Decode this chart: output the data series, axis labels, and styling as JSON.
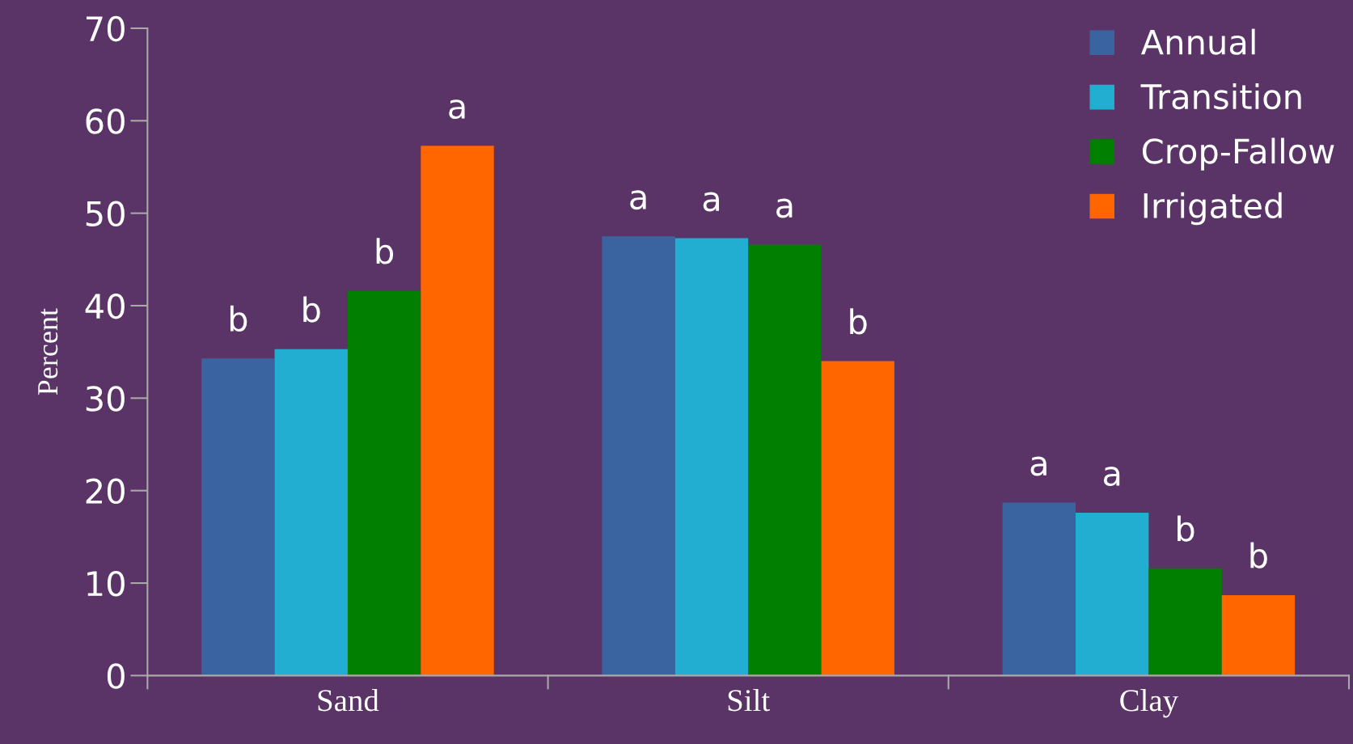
{
  "chart_data": {
    "type": "bar",
    "ylabel": "Percent",
    "categories": [
      "Sand",
      "Silt",
      "Clay"
    ],
    "series": [
      {
        "name": "Annual",
        "color": "#3a64a0",
        "values": [
          34.3,
          47.5,
          18.7
        ],
        "value_labels": [
          "b",
          "a",
          "a"
        ]
      },
      {
        "name": "Transition",
        "color": "#21aed0",
        "values": [
          35.3,
          47.3,
          17.6
        ],
        "value_labels": [
          "b",
          "a",
          "a"
        ]
      },
      {
        "name": "Crop-Fallow",
        "color": "#007f00",
        "values": [
          41.6,
          46.6,
          11.6
        ],
        "value_labels": [
          "b",
          "a",
          "b"
        ]
      },
      {
        "name": "Irrigated",
        "color": "#ff6600",
        "values": [
          57.3,
          34.0,
          8.7
        ],
        "value_labels": [
          "a",
          "b",
          "b"
        ]
      }
    ],
    "ylim": [
      0,
      70
    ],
    "yticks": [
      0,
      10,
      20,
      30,
      40,
      50,
      60,
      70
    ],
    "grid": false,
    "legend": "top right"
  }
}
